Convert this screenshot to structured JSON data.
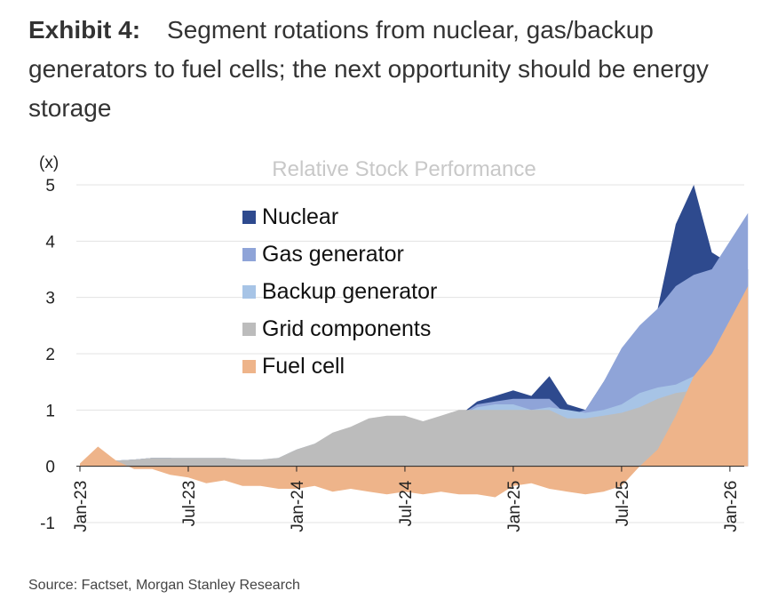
{
  "exhibit": {
    "label": "Exhibit 4:",
    "text": "Segment rotations from nuclear, gas/backup generators to fuel cells; the next opportunity should be energy storage"
  },
  "source": "Source: Factset, Morgan Stanley Research",
  "chart_data": {
    "type": "area",
    "title": "Relative Stock Performance",
    "y_unit_label": "(x)",
    "xlabel": "",
    "ylabel": "",
    "ylim": [
      -1,
      5
    ],
    "yticks": [
      "5",
      "4",
      "3",
      "2",
      "1",
      "0",
      "-1"
    ],
    "x_tick_labels": [
      "Jan-23",
      "Jul-23",
      "Jan-24",
      "Jul-24",
      "Jan-25",
      "Jul-25",
      "Jan-26"
    ],
    "grid": true,
    "legend_position": "top-left",
    "x": [
      "2023-01",
      "2023-02",
      "2023-03",
      "2023-04",
      "2023-05",
      "2023-06",
      "2023-07",
      "2023-08",
      "2023-09",
      "2023-10",
      "2023-11",
      "2023-12",
      "2024-01",
      "2024-02",
      "2024-03",
      "2024-04",
      "2024-05",
      "2024-06",
      "2024-07",
      "2024-08",
      "2024-09",
      "2024-10",
      "2024-11",
      "2024-12",
      "2025-01",
      "2025-02",
      "2025-03",
      "2025-04",
      "2025-05",
      "2025-06",
      "2025-07",
      "2025-08",
      "2025-09",
      "2025-10",
      "2025-11",
      "2025-12",
      "2026-01",
      "2026-02"
    ],
    "series": [
      {
        "name": "Nuclear",
        "color": "#2e4a8e",
        "values": [
          0,
          0.05,
          0.1,
          0.12,
          0.15,
          0.15,
          0.1,
          0.12,
          0.1,
          0.1,
          0.1,
          0.05,
          0.25,
          0.3,
          0.45,
          0.55,
          0.65,
          0.75,
          0.8,
          0.65,
          0.75,
          0.9,
          1.15,
          1.25,
          1.35,
          1.25,
          1.6,
          1.1,
          1.0,
          1.5,
          2.0,
          2.2,
          2.8,
          4.3,
          5.0,
          3.8,
          3.6,
          3.5
        ]
      },
      {
        "name": "Gas generator",
        "color": "#8fa4d8",
        "values": [
          0,
          0.05,
          0.1,
          0.12,
          0.15,
          0.15,
          0.1,
          0.12,
          0.15,
          0.1,
          0.1,
          0.1,
          0.25,
          0.3,
          0.45,
          0.55,
          0.65,
          0.75,
          0.8,
          0.7,
          0.8,
          0.9,
          1.1,
          1.15,
          1.2,
          1.2,
          1.2,
          0.9,
          1.0,
          1.5,
          2.1,
          2.5,
          2.8,
          3.2,
          3.4,
          3.5,
          4.0,
          4.5
        ]
      },
      {
        "name": "Backup generator",
        "color": "#a7c4e6",
        "values": [
          0,
          0.05,
          0.1,
          0.12,
          0.15,
          0.15,
          0.15,
          0.15,
          0.15,
          0.12,
          0.12,
          0.15,
          0.3,
          0.4,
          0.55,
          0.65,
          0.75,
          0.85,
          0.85,
          0.75,
          0.8,
          0.9,
          1.05,
          1.1,
          1.1,
          1.0,
          1.05,
          1.0,
          0.95,
          1.0,
          1.1,
          1.3,
          1.4,
          1.45,
          1.6,
          1.8,
          2.0,
          2.2
        ]
      },
      {
        "name": "Grid components",
        "color": "#bcbcbc",
        "values": [
          0,
          0.05,
          0.1,
          0.12,
          0.15,
          0.15,
          0.15,
          0.15,
          0.15,
          0.12,
          0.12,
          0.15,
          0.3,
          0.4,
          0.6,
          0.7,
          0.85,
          0.9,
          0.9,
          0.8,
          0.9,
          1.0,
          1.0,
          1.0,
          1.0,
          1.0,
          1.0,
          0.85,
          0.85,
          0.9,
          0.95,
          1.05,
          1.2,
          1.3,
          1.35,
          1.5,
          1.6,
          1.8
        ]
      },
      {
        "name": "Fuel cell",
        "color": "#eeb48a",
        "values": [
          0.05,
          0.35,
          0.1,
          -0.05,
          -0.05,
          -0.15,
          -0.2,
          -0.3,
          -0.25,
          -0.35,
          -0.35,
          -0.4,
          -0.4,
          -0.35,
          -0.45,
          -0.4,
          -0.45,
          -0.5,
          -0.45,
          -0.5,
          -0.45,
          -0.5,
          -0.5,
          -0.55,
          -0.35,
          -0.3,
          -0.4,
          -0.45,
          -0.5,
          -0.45,
          -0.35,
          0.0,
          0.3,
          0.9,
          1.6,
          2.0,
          2.6,
          3.2
        ]
      }
    ]
  }
}
